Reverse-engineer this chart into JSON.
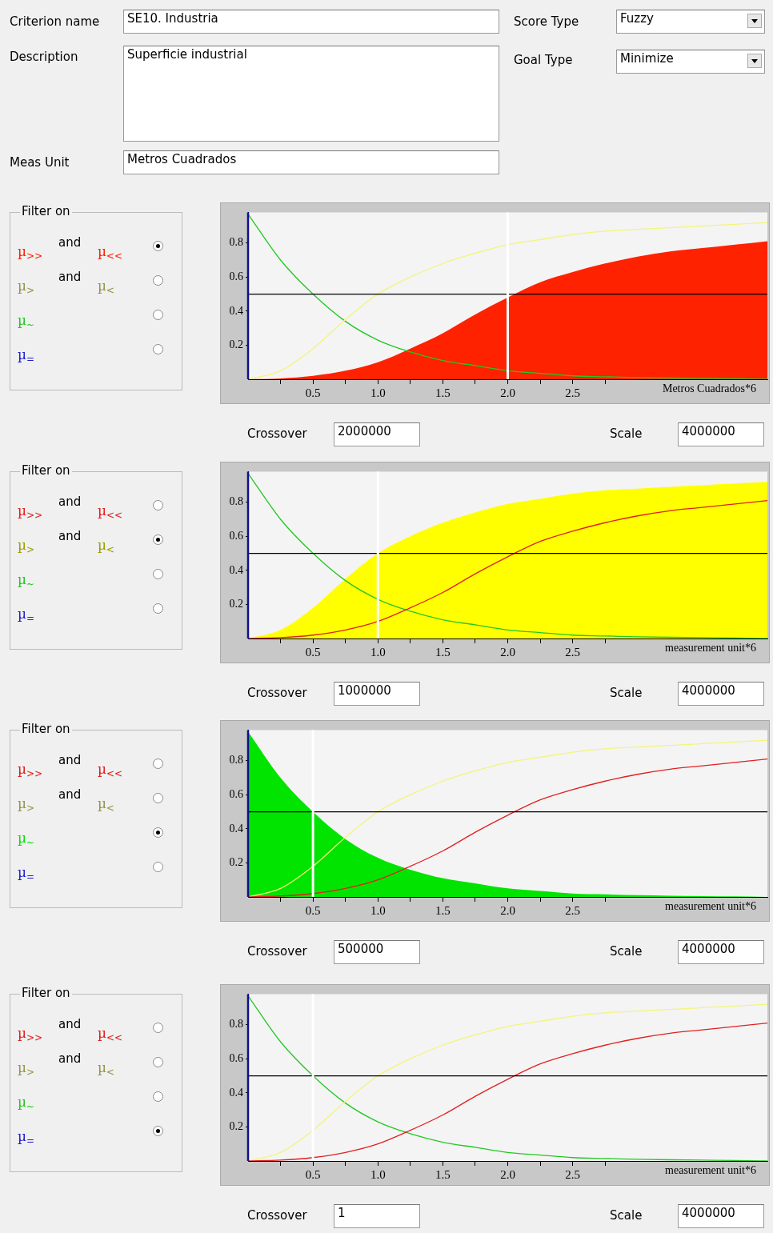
{
  "chart_data": [
    {
      "type": "other",
      "annotations": [
        "Criterion name",
        "SE10. Industria",
        "Description",
        "Superficie industrial",
        "Meas Unit",
        "Metros Cuadrados",
        "Score Type",
        "Fuzzy",
        "Goal Type",
        "Minimize"
      ]
    },
    {
      "type": "line",
      "xlabel": "Metros Cuadrados*6",
      "xlim": [
        0,
        4
      ],
      "ylim": [
        0,
        0.98
      ],
      "grid": false,
      "legend": false,
      "marker": "none",
      "xticks": [
        {
          "value": 0.25,
          "label": null
        },
        {
          "value": 0.5,
          "label": "0.5"
        },
        {
          "value": 0.75,
          "label": null
        },
        {
          "value": 1,
          "label": "1.0"
        },
        {
          "value": 1.25,
          "label": null
        },
        {
          "value": 1.5,
          "label": "1.5"
        },
        {
          "value": 1.75,
          "label": null
        },
        {
          "value": 2,
          "label": "2.0"
        },
        {
          "value": 2.25,
          "label": null
        },
        {
          "value": 2.5,
          "label": "2.5"
        },
        {
          "value": 2.75,
          "label": null
        }
      ],
      "yticks": [
        0.2,
        0.4,
        0.6,
        0.8
      ],
      "x": [
        0,
        0.25,
        0.5,
        0.75,
        1,
        1.25,
        1.5,
        1.75,
        2,
        2.25,
        2.5,
        2.75,
        3,
        3.25,
        3.5,
        3.75,
        4
      ],
      "series": [
        {
          "type": "area",
          "color": "#ff2200",
          "values": [
            0,
            0.005,
            0.02,
            0.05,
            0.1,
            0.18,
            0.27,
            0.38,
            0.48,
            0.57,
            0.63,
            0.68,
            0.72,
            0.75,
            0.77,
            0.79,
            0.81
          ]
        },
        {
          "type": "line",
          "color": "#f4f47a",
          "values": [
            0,
            0.05,
            0.18,
            0.35,
            0.5,
            0.6,
            0.68,
            0.74,
            0.79,
            0.82,
            0.85,
            0.87,
            0.88,
            0.89,
            0.9,
            0.91,
            0.92
          ]
        },
        {
          "type": "line",
          "color": "#22c822",
          "values": [
            0.97,
            0.7,
            0.5,
            0.34,
            0.23,
            0.16,
            0.11,
            0.08,
            0.05,
            0.035,
            0.02,
            0.015,
            0.01,
            0.007,
            0.005,
            0.003,
            0
          ]
        }
      ],
      "ref_lines": [
        {
          "axis": "y",
          "value": 0.5,
          "color": "#000000"
        },
        {
          "axis": "x",
          "value": 2,
          "color": "#ffffff"
        }
      ],
      "annotations": [
        "Filter on",
        "µ$_{>>}$",
        "and",
        "µ$_{<<}$",
        "µ$_{>}$",
        "and",
        "µ$_{<}$",
        "µ$_{~}$",
        "µ$_{=}$",
        "Crossover",
        "2000000",
        "Scale",
        "4000000"
      ]
    },
    {
      "type": "line",
      "xlabel": "measurement unit*6",
      "xlim": [
        0,
        4
      ],
      "ylim": [
        0,
        0.98
      ],
      "grid": false,
      "legend": false,
      "marker": "none",
      "xticks": [
        {
          "value": 0.25,
          "label": null
        },
        {
          "value": 0.5,
          "label": "0.5"
        },
        {
          "value": 0.75,
          "label": null
        },
        {
          "value": 1,
          "label": "1.0"
        },
        {
          "value": 1.25,
          "label": null
        },
        {
          "value": 1.5,
          "label": "1.5"
        },
        {
          "value": 1.75,
          "label": null
        },
        {
          "value": 2,
          "label": "2.0"
        },
        {
          "value": 2.25,
          "label": null
        },
        {
          "value": 2.5,
          "label": "2.5"
        },
        {
          "value": 2.75,
          "label": null
        }
      ],
      "yticks": [
        0.2,
        0.4,
        0.6,
        0.8
      ],
      "x": [
        0,
        0.25,
        0.5,
        0.75,
        1,
        1.25,
        1.5,
        1.75,
        2,
        2.25,
        2.5,
        2.75,
        3,
        3.25,
        3.5,
        3.75,
        4
      ],
      "series": [
        {
          "type": "line",
          "color": "#e02020",
          "values": [
            0,
            0.005,
            0.02,
            0.05,
            0.1,
            0.18,
            0.27,
            0.38,
            0.48,
            0.57,
            0.63,
            0.68,
            0.72,
            0.75,
            0.77,
            0.79,
            0.81
          ]
        },
        {
          "type": "area",
          "color": "#ffff00",
          "values": [
            0,
            0.05,
            0.18,
            0.35,
            0.5,
            0.6,
            0.68,
            0.74,
            0.79,
            0.82,
            0.85,
            0.87,
            0.88,
            0.89,
            0.9,
            0.91,
            0.92
          ]
        },
        {
          "type": "line",
          "color": "#22c822",
          "values": [
            0.97,
            0.7,
            0.5,
            0.34,
            0.23,
            0.16,
            0.11,
            0.08,
            0.05,
            0.035,
            0.02,
            0.015,
            0.01,
            0.007,
            0.005,
            0.003,
            0
          ]
        }
      ],
      "ref_lines": [
        {
          "axis": "y",
          "value": 0.5,
          "color": "#000000"
        },
        {
          "axis": "x",
          "value": 1,
          "color": "#ffffff"
        }
      ],
      "annotations": [
        "Filter on",
        "µ$_{>>}$",
        "and",
        "µ$_{<<}$",
        "µ$_{>}$",
        "and",
        "µ$_{<}$",
        "µ$_{~}$",
        "µ$_{=}$",
        "Crossover",
        "1000000",
        "Scale",
        "4000000"
      ]
    },
    {
      "type": "line",
      "xlabel": "measurement unit*6",
      "xlim": [
        0,
        4
      ],
      "ylim": [
        0,
        0.98
      ],
      "grid": false,
      "legend": false,
      "marker": "none",
      "xticks": [
        {
          "value": 0.25,
          "label": null
        },
        {
          "value": 0.5,
          "label": "0.5"
        },
        {
          "value": 0.75,
          "label": null
        },
        {
          "value": 1,
          "label": "1.0"
        },
        {
          "value": 1.25,
          "label": null
        },
        {
          "value": 1.5,
          "label": "1.5"
        },
        {
          "value": 1.75,
          "label": null
        },
        {
          "value": 2,
          "label": "2.0"
        },
        {
          "value": 2.25,
          "label": null
        },
        {
          "value": 2.5,
          "label": "2.5"
        },
        {
          "value": 2.75,
          "label": null
        }
      ],
      "yticks": [
        0.2,
        0.4,
        0.6,
        0.8
      ],
      "x": [
        0,
        0.25,
        0.5,
        0.75,
        1,
        1.25,
        1.5,
        1.75,
        2,
        2.25,
        2.5,
        2.75,
        3,
        3.25,
        3.5,
        3.75,
        4
      ],
      "series": [
        {
          "type": "line",
          "color": "#e02020",
          "values": [
            0,
            0.005,
            0.02,
            0.05,
            0.1,
            0.18,
            0.27,
            0.38,
            0.48,
            0.57,
            0.63,
            0.68,
            0.72,
            0.75,
            0.77,
            0.79,
            0.81
          ]
        },
        {
          "type": "line",
          "color": "#f4f47a",
          "values": [
            0,
            0.05,
            0.18,
            0.35,
            0.5,
            0.6,
            0.68,
            0.74,
            0.79,
            0.82,
            0.85,
            0.87,
            0.88,
            0.89,
            0.9,
            0.91,
            0.92
          ]
        },
        {
          "type": "area",
          "color": "#00e400",
          "values": [
            0.97,
            0.7,
            0.5,
            0.34,
            0.23,
            0.16,
            0.11,
            0.08,
            0.05,
            0.035,
            0.02,
            0.015,
            0.01,
            0.007,
            0.005,
            0.003,
            0
          ]
        }
      ],
      "ref_lines": [
        {
          "axis": "y",
          "value": 0.5,
          "color": "#000000"
        },
        {
          "axis": "x",
          "value": 0.5,
          "color": "#ffffff"
        }
      ],
      "annotations": [
        "Filter on",
        "µ$_{>>}$",
        "and",
        "µ$_{<<}$",
        "µ$_{>}$",
        "and",
        "µ$_{<}$",
        "µ$_{~}$",
        "µ$_{=}$",
        "Crossover",
        "500000",
        "Scale",
        "4000000"
      ]
    },
    {
      "type": "line",
      "xlabel": "measurement unit*6",
      "xlim": [
        0,
        4
      ],
      "ylim": [
        0,
        0.98
      ],
      "grid": false,
      "legend": false,
      "marker": "none",
      "xticks": [
        {
          "value": 0.25,
          "label": null
        },
        {
          "value": 0.5,
          "label": "0.5"
        },
        {
          "value": 0.75,
          "label": null
        },
        {
          "value": 1,
          "label": "1.0"
        },
        {
          "value": 1.25,
          "label": null
        },
        {
          "value": 1.5,
          "label": "1.5"
        },
        {
          "value": 1.75,
          "label": null
        },
        {
          "value": 2,
          "label": "2.0"
        },
        {
          "value": 2.25,
          "label": null
        },
        {
          "value": 2.5,
          "label": "2.5"
        },
        {
          "value": 2.75,
          "label": null
        }
      ],
      "yticks": [
        0.2,
        0.4,
        0.6,
        0.8
      ],
      "x": [
        0,
        0.25,
        0.5,
        0.75,
        1,
        1.25,
        1.5,
        1.75,
        2,
        2.25,
        2.5,
        2.75,
        3,
        3.25,
        3.5,
        3.75,
        4
      ],
      "series": [
        {
          "type": "line",
          "color": "#e02020",
          "values": [
            0,
            0.005,
            0.02,
            0.05,
            0.1,
            0.18,
            0.27,
            0.38,
            0.48,
            0.57,
            0.63,
            0.68,
            0.72,
            0.75,
            0.77,
            0.79,
            0.81
          ]
        },
        {
          "type": "line",
          "color": "#f4f47a",
          "values": [
            0,
            0.05,
            0.18,
            0.35,
            0.5,
            0.6,
            0.68,
            0.74,
            0.79,
            0.82,
            0.85,
            0.87,
            0.88,
            0.89,
            0.9,
            0.91,
            0.92
          ]
        },
        {
          "type": "line",
          "color": "#22c822",
          "values": [
            0.97,
            0.7,
            0.5,
            0.34,
            0.23,
            0.16,
            0.11,
            0.08,
            0.05,
            0.035,
            0.02,
            0.015,
            0.01,
            0.007,
            0.005,
            0.003,
            0
          ]
        }
      ],
      "ref_lines": [
        {
          "axis": "y",
          "value": 0.5,
          "color": "#000000"
        },
        {
          "axis": "x",
          "value": 0.5,
          "color": "#ffffff"
        }
      ],
      "annotations": [
        "Filter on",
        "µ$_{>>}$",
        "and",
        "µ$_{<<}$",
        "µ$_{>}$",
        "and",
        "µ$_{<}$",
        "µ$_{~}$",
        "µ$_{=}$",
        "Crossover",
        "1",
        "Scale",
        "4000000"
      ]
    }
  ]
}
